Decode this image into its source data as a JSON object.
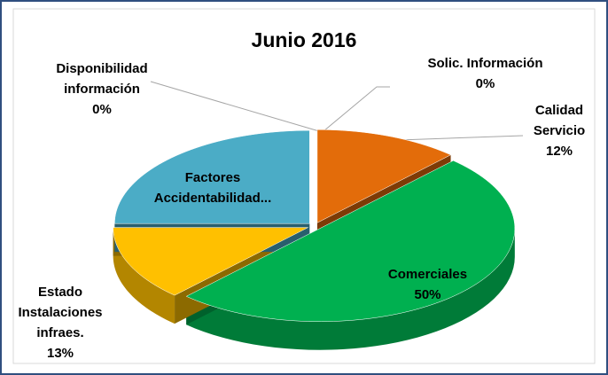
{
  "chart_data": {
    "type": "pie3d",
    "title": "Junio 2016",
    "categories": [
      "Solic. Información",
      "Calidad Servicio",
      "Comerciales",
      "Estado Instalaciones infraes.",
      "Factores Accidentabilidad...",
      "Disponibilidad información"
    ],
    "values": [
      0,
      12,
      50,
      13,
      25,
      0
    ],
    "value_labels": [
      "0%",
      "12%",
      "50%",
      "13%",
      null,
      "0%"
    ],
    "colors": [
      "#7f7f7f",
      "#e36c0a",
      "#00b050",
      "#ffc000",
      "#4bacc6",
      "#7f7f7f"
    ]
  }
}
